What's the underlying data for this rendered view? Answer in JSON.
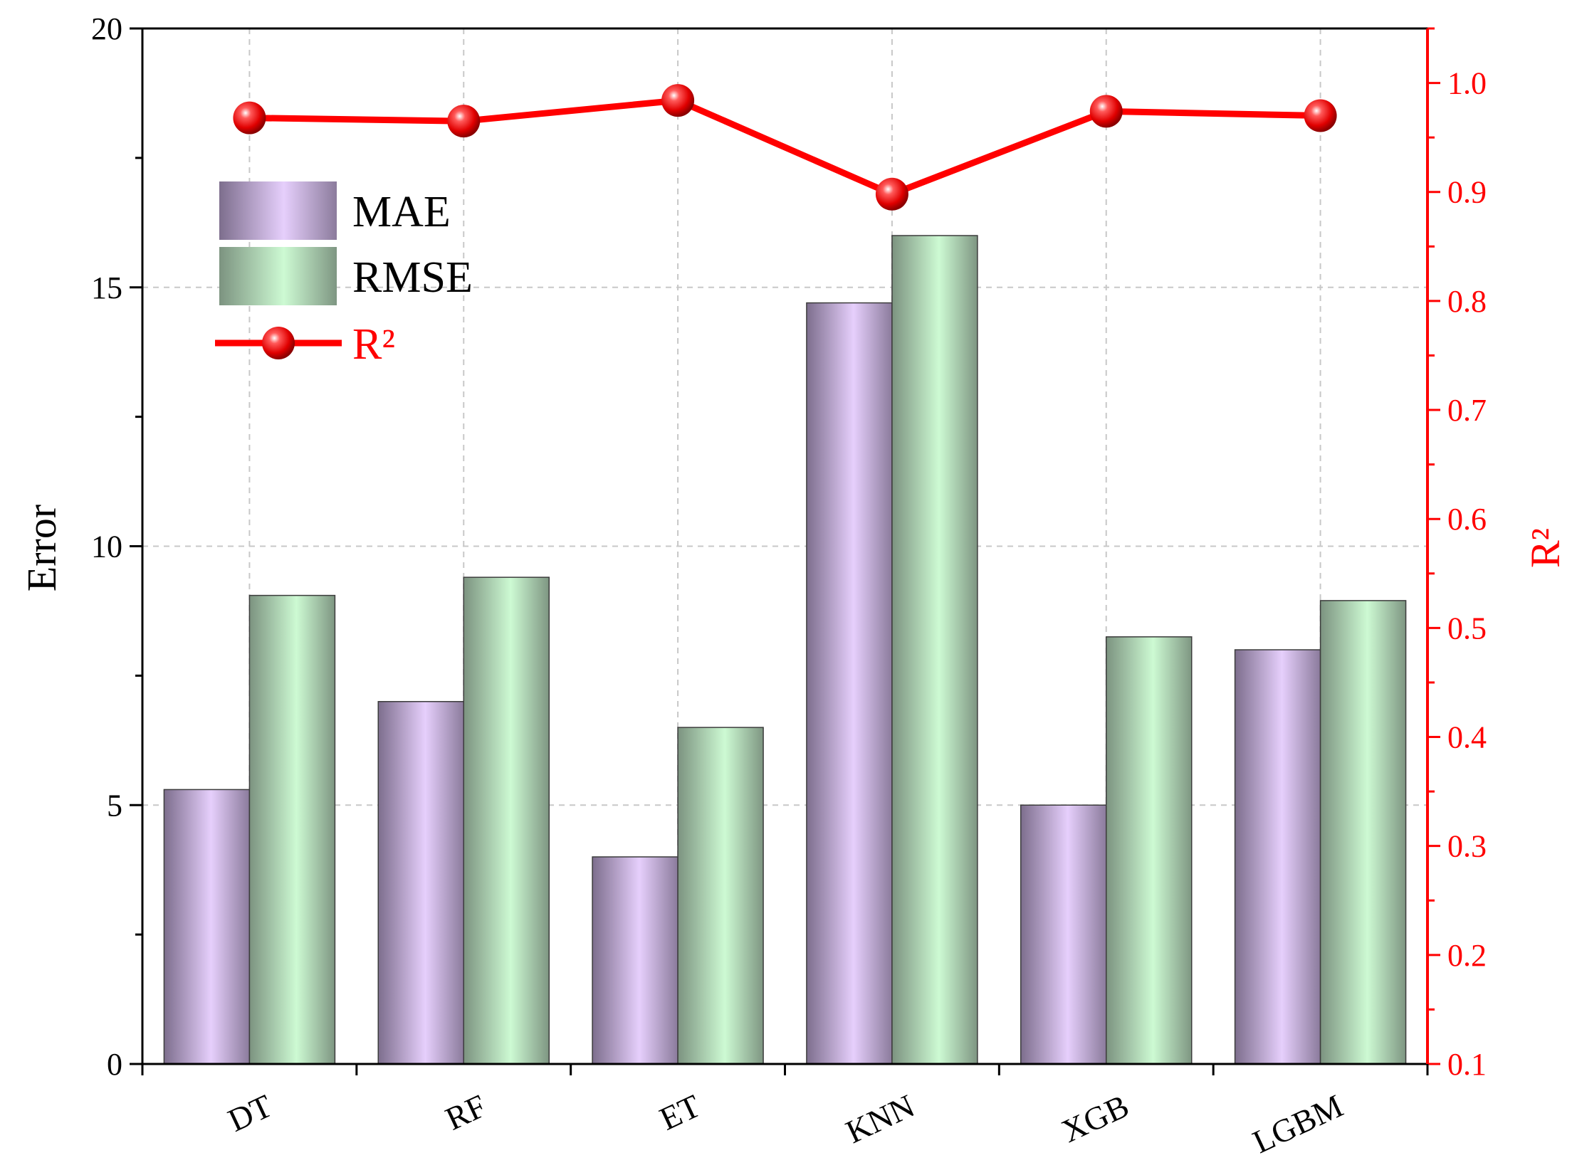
{
  "chart_data": {
    "type": "bar",
    "categories": [
      "DT",
      "RF",
      "ET",
      "KNN",
      "XGB",
      "LGBM"
    ],
    "series": [
      {
        "name": "MAE",
        "axis": "left",
        "kind": "bar",
        "color": "#e6cffc",
        "values": [
          5.3,
          7.0,
          4.0,
          14.7,
          5.0,
          8.0
        ]
      },
      {
        "name": "RMSE",
        "axis": "left",
        "kind": "bar",
        "color": "#cdfad3",
        "values": [
          9.05,
          9.4,
          6.5,
          16.0,
          8.25,
          8.95
        ]
      },
      {
        "name": "R²",
        "axis": "right",
        "kind": "line",
        "color": "#ff0000",
        "values": [
          0.968,
          0.965,
          0.984,
          0.898,
          0.974,
          0.97
        ]
      }
    ],
    "ylabel": "Error",
    "ylim": [
      0,
      20
    ],
    "yticks": [
      "0",
      "5",
      "10",
      "15",
      "20"
    ],
    "y2label": "R²",
    "y2lim": [
      0.1,
      1.05
    ],
    "y2ticks": [
      "0.1",
      "0.2",
      "0.3",
      "0.4",
      "0.5",
      "0.6",
      "0.7",
      "0.8",
      "0.9",
      "1.0"
    ],
    "grid": true,
    "legend": "top-left",
    "legend_labels": [
      "MAE",
      "RMSE",
      "R²"
    ]
  }
}
